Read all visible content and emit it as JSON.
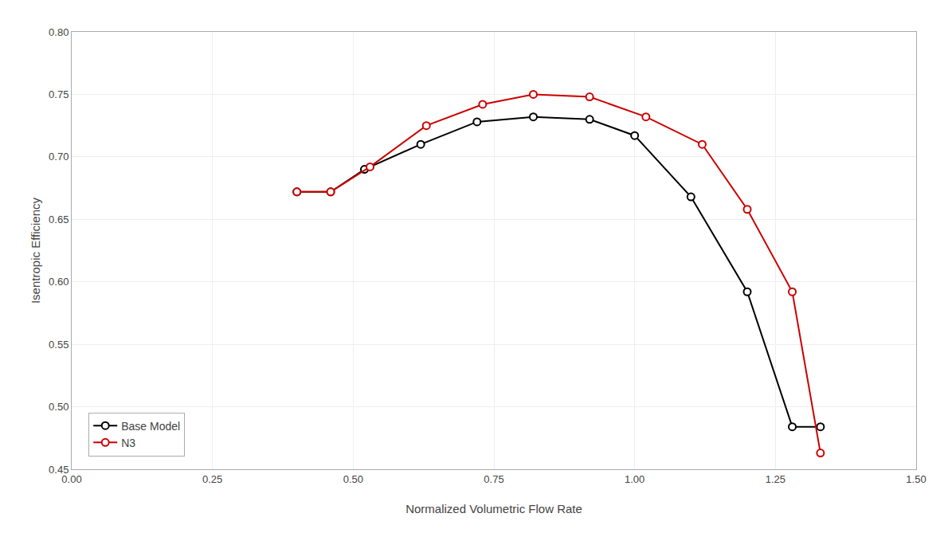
{
  "chart_data": {
    "type": "line",
    "xlabel": "Normalized Volumetric Flow Rate",
    "ylabel": "Isentropic Efficiency",
    "series": [
      {
        "name": "Base Model",
        "color": "#000000",
        "marker": "circle",
        "line_style": "solid",
        "x": [
          0.4,
          0.46,
          0.52,
          0.62,
          0.72,
          0.82,
          0.92,
          1.0,
          1.1,
          1.2,
          1.28,
          1.33
        ],
        "values": [
          0.672,
          0.672,
          0.69,
          0.71,
          0.728,
          0.732,
          0.73,
          0.717,
          0.668,
          0.592,
          0.484,
          0.484
        ]
      },
      {
        "name": "N3",
        "color": "#cc0000",
        "marker": "circle",
        "line_style": "solid",
        "x": [
          0.4,
          0.46,
          0.53,
          0.63,
          0.73,
          0.82,
          0.92,
          1.02,
          1.12,
          1.2,
          1.28,
          1.33
        ],
        "values": [
          0.672,
          0.672,
          0.692,
          0.725,
          0.742,
          0.75,
          0.748,
          0.732,
          0.71,
          0.658,
          0.592,
          0.463
        ]
      }
    ],
    "xlim": [
      0.0,
      1.5
    ],
    "ylim": [
      0.45,
      0.8
    ],
    "xticks": [
      {
        "value": 0.0,
        "label": "0.00"
      },
      {
        "value": 0.25,
        "label": "0.25"
      },
      {
        "value": 0.5,
        "label": "0.50"
      },
      {
        "value": 0.75,
        "label": "0.75"
      },
      {
        "value": 1.0,
        "label": "1.00"
      },
      {
        "value": 1.25,
        "label": "1.25"
      },
      {
        "value": 1.5,
        "label": "1.50"
      }
    ],
    "yticks": [
      {
        "value": 0.45,
        "label": "0.45"
      },
      {
        "value": 0.5,
        "label": "0.50"
      },
      {
        "value": 0.55,
        "label": "0.55"
      },
      {
        "value": 0.6,
        "label": "0.60"
      },
      {
        "value": 0.65,
        "label": "0.65"
      },
      {
        "value": 0.7,
        "label": "0.70"
      },
      {
        "value": 0.75,
        "label": "0.75"
      },
      {
        "value": 0.8,
        "label": "0.80"
      }
    ],
    "grid": true,
    "legend": "lower left"
  }
}
